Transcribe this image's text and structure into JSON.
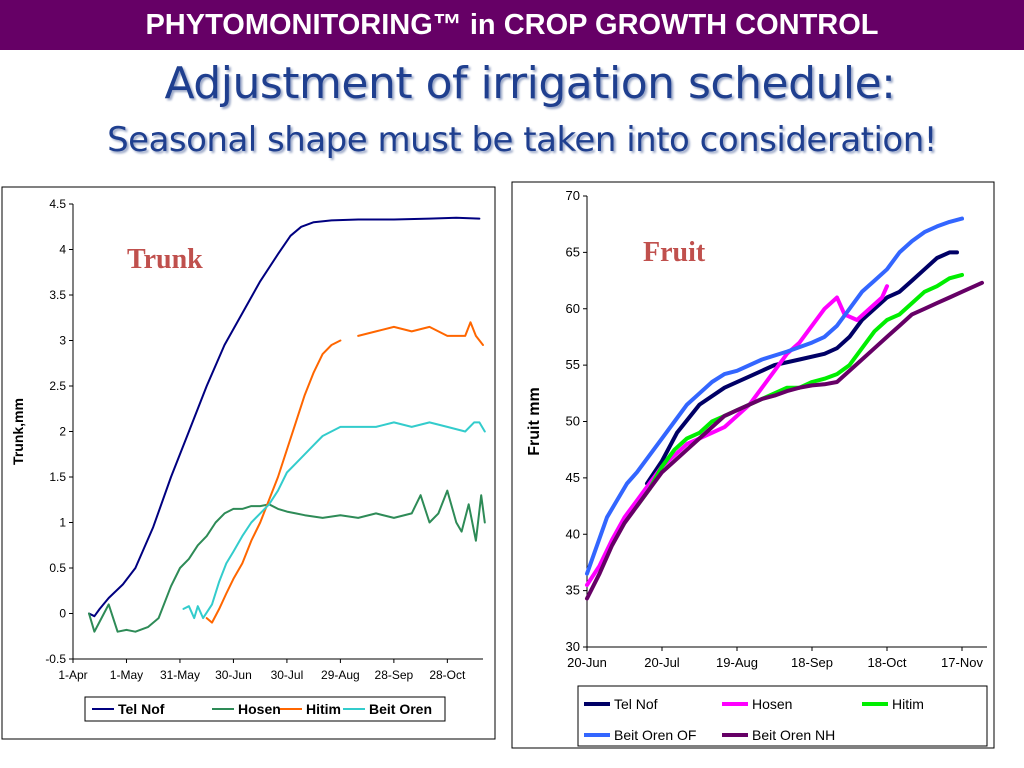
{
  "header": {
    "banner": "PHYTOMONITORING™ in CROP GROWTH CONTROL",
    "title": "Adjustment of irrigation schedule:",
    "subtitle": "Seasonal shape must be taken into consideration!"
  },
  "chart_data": [
    {
      "type": "line",
      "title": "Trunk",
      "xlabel": "",
      "ylabel": "Trunk,mm",
      "x_ticks": [
        "1-Apr",
        "1-May",
        "31-May",
        "30-Jun",
        "30-Jul",
        "29-Aug",
        "28-Sep",
        "28-Oct"
      ],
      "x_tick_days": [
        0,
        30,
        60,
        90,
        120,
        150,
        180,
        210
      ],
      "xlim": [
        0,
        230
      ],
      "ylim": [
        -0.5,
        4.5
      ],
      "y_ticks": [
        "-0.5",
        "0",
        "0.5",
        "1",
        "1.5",
        "2",
        "2.5",
        "3",
        "3.5",
        "4",
        "4.5"
      ],
      "legend": "bottom",
      "series": [
        {
          "name": "Tel Nof",
          "color": "#000080",
          "x": [
            9,
            12,
            15,
            20,
            28,
            35,
            45,
            55,
            65,
            75,
            85,
            95,
            105,
            115,
            122,
            128,
            135,
            145,
            160,
            180,
            200,
            215,
            228
          ],
          "y": [
            0.0,
            -0.03,
            0.05,
            0.17,
            0.32,
            0.5,
            0.95,
            1.5,
            2.0,
            2.5,
            2.95,
            3.3,
            3.65,
            3.95,
            4.15,
            4.25,
            4.3,
            4.32,
            4.33,
            4.33,
            4.34,
            4.35,
            4.34
          ]
        },
        {
          "name": "Hosen",
          "color": "#2e8b57",
          "x": [
            9,
            12,
            16,
            20,
            25,
            30,
            35,
            42,
            48,
            55,
            60,
            65,
            70,
            75,
            80,
            85,
            90,
            95,
            100,
            105,
            110,
            115,
            120,
            125,
            130,
            140,
            150,
            160,
            170,
            180,
            190,
            195,
            200,
            205,
            210,
            215,
            218,
            222,
            226,
            229,
            231
          ],
          "y": [
            0.0,
            -0.2,
            -0.05,
            0.1,
            -0.2,
            -0.18,
            -0.2,
            -0.15,
            -0.05,
            0.3,
            0.5,
            0.6,
            0.75,
            0.85,
            1.0,
            1.1,
            1.15,
            1.15,
            1.18,
            1.18,
            1.2,
            1.15,
            1.12,
            1.1,
            1.08,
            1.05,
            1.08,
            1.05,
            1.1,
            1.05,
            1.1,
            1.3,
            1.0,
            1.1,
            1.35,
            1.0,
            0.9,
            1.2,
            0.8,
            1.3,
            1.0
          ]
        },
        {
          "name": "Hitim",
          "color": "#ff6600",
          "x": [
            75,
            78,
            82,
            86,
            90,
            95,
            100,
            105,
            110,
            115,
            120,
            125,
            130,
            135,
            140,
            145,
            150,
            153,
            160,
            170,
            180,
            190,
            200,
            205,
            210,
            215,
            220,
            223,
            226,
            230
          ],
          "y": [
            -0.05,
            -0.1,
            0.05,
            0.22,
            0.38,
            0.55,
            0.8,
            1.0,
            1.25,
            1.5,
            1.8,
            2.1,
            2.4,
            2.65,
            2.85,
            2.95,
            3.0,
            null,
            3.05,
            3.1,
            3.15,
            3.1,
            3.15,
            3.1,
            3.05,
            3.05,
            3.05,
            3.2,
            3.05,
            2.95
          ]
        },
        {
          "name": "Beit Oren",
          "color": "#33cccc",
          "x": [
            62,
            65,
            68,
            70,
            73,
            78,
            82,
            86,
            90,
            95,
            100,
            105,
            110,
            115,
            120,
            125,
            130,
            135,
            140,
            150,
            160,
            170,
            180,
            190,
            200,
            210,
            220,
            225,
            228,
            231
          ],
          "y": [
            0.05,
            0.08,
            -0.05,
            0.08,
            -0.05,
            0.1,
            0.35,
            0.55,
            0.68,
            0.85,
            1.0,
            1.1,
            1.2,
            1.35,
            1.55,
            1.65,
            1.75,
            1.85,
            1.95,
            2.05,
            2.05,
            2.05,
            2.1,
            2.05,
            2.1,
            2.05,
            2.0,
            2.1,
            2.1,
            2.0
          ]
        }
      ]
    },
    {
      "type": "line",
      "title": "Fruit",
      "xlabel": "",
      "ylabel": "Fruit mm",
      "x_ticks": [
        "20-Jun",
        "20-Jul",
        "19-Aug",
        "18-Sep",
        "18-Oct",
        "17-Nov"
      ],
      "x_tick_days": [
        0,
        30,
        60,
        90,
        120,
        150
      ],
      "xlim": [
        0,
        160
      ],
      "ylim": [
        30,
        70
      ],
      "y_ticks": [
        "30",
        "35",
        "40",
        "45",
        "50",
        "55",
        "60",
        "65",
        "70"
      ],
      "legend": "bottom",
      "series": [
        {
          "name": "Tel Nof",
          "color": "#000066",
          "x": [
            24,
            30,
            36,
            45,
            55,
            65,
            75,
            85,
            95,
            100,
            105,
            110,
            115,
            120,
            125,
            130,
            135,
            140,
            145,
            148
          ],
          "y": [
            44.5,
            46.5,
            49,
            51.5,
            53,
            54,
            55,
            55.5,
            56,
            56.5,
            57.5,
            59,
            60,
            61,
            61.5,
            62.5,
            63.5,
            64.5,
            65,
            65
          ]
        },
        {
          "name": "Hosen",
          "color": "#ff00ff",
          "x": [
            0,
            5,
            10,
            15,
            20,
            25,
            30,
            35,
            40,
            45,
            50,
            55,
            60,
            65,
            70,
            75,
            80,
            85,
            90,
            95,
            100,
            103,
            108,
            113,
            118,
            120
          ],
          "y": [
            35.5,
            37.2,
            39.5,
            41.5,
            43,
            44.5,
            46,
            47,
            48,
            48.5,
            49,
            49.5,
            50.5,
            51.5,
            53,
            54.5,
            56,
            57,
            58.5,
            60,
            61,
            59.5,
            59,
            60,
            61,
            62
          ]
        },
        {
          "name": "Hitim",
          "color": "#00ee00",
          "x": [
            20,
            25,
            30,
            35,
            40,
            45,
            50,
            55,
            60,
            65,
            70,
            75,
            80,
            85,
            90,
            95,
            100,
            105,
            110,
            115,
            120,
            125,
            130,
            135,
            140,
            145,
            150
          ],
          "y": [
            42.5,
            44,
            46,
            47.5,
            48.5,
            49,
            50,
            50.5,
            51,
            51.5,
            52,
            52.5,
            53,
            53,
            53.5,
            53.8,
            54.2,
            55,
            56.5,
            58,
            59,
            59.5,
            60.5,
            61.5,
            62,
            62.7,
            63
          ]
        },
        {
          "name": "Beit Oren OF",
          "color": "#3366ff",
          "x": [
            0,
            4,
            8,
            12,
            16,
            20,
            25,
            30,
            35,
            40,
            45,
            50,
            55,
            60,
            70,
            80,
            90,
            95,
            100,
            105,
            110,
            115,
            120,
            125,
            130,
            135,
            140,
            145,
            150
          ],
          "y": [
            36.5,
            39,
            41.5,
            43,
            44.5,
            45.5,
            47,
            48.5,
            50,
            51.5,
            52.5,
            53.5,
            54.2,
            54.5,
            55.5,
            56.2,
            57,
            57.5,
            58.5,
            60,
            61.5,
            62.5,
            63.5,
            65,
            66,
            66.8,
            67.3,
            67.7,
            68
          ]
        },
        {
          "name": "Beit Oren NH",
          "color": "#660066",
          "x": [
            0,
            5,
            10,
            15,
            20,
            25,
            30,
            35,
            40,
            45,
            50,
            55,
            60,
            65,
            70,
            75,
            80,
            85,
            90,
            95,
            100,
            105,
            110,
            115,
            120,
            125,
            130,
            135,
            140,
            145,
            150,
            155,
            158
          ],
          "y": [
            34.3,
            36.5,
            39,
            41,
            42.5,
            44,
            45.5,
            46.5,
            47.5,
            48.5,
            49.5,
            50.5,
            51,
            51.5,
            52,
            52.3,
            52.7,
            53,
            53.2,
            53.3,
            53.5,
            54.5,
            55.5,
            56.5,
            57.5,
            58.5,
            59.5,
            60,
            60.5,
            61,
            61.5,
            62,
            62.3
          ]
        }
      ]
    }
  ]
}
